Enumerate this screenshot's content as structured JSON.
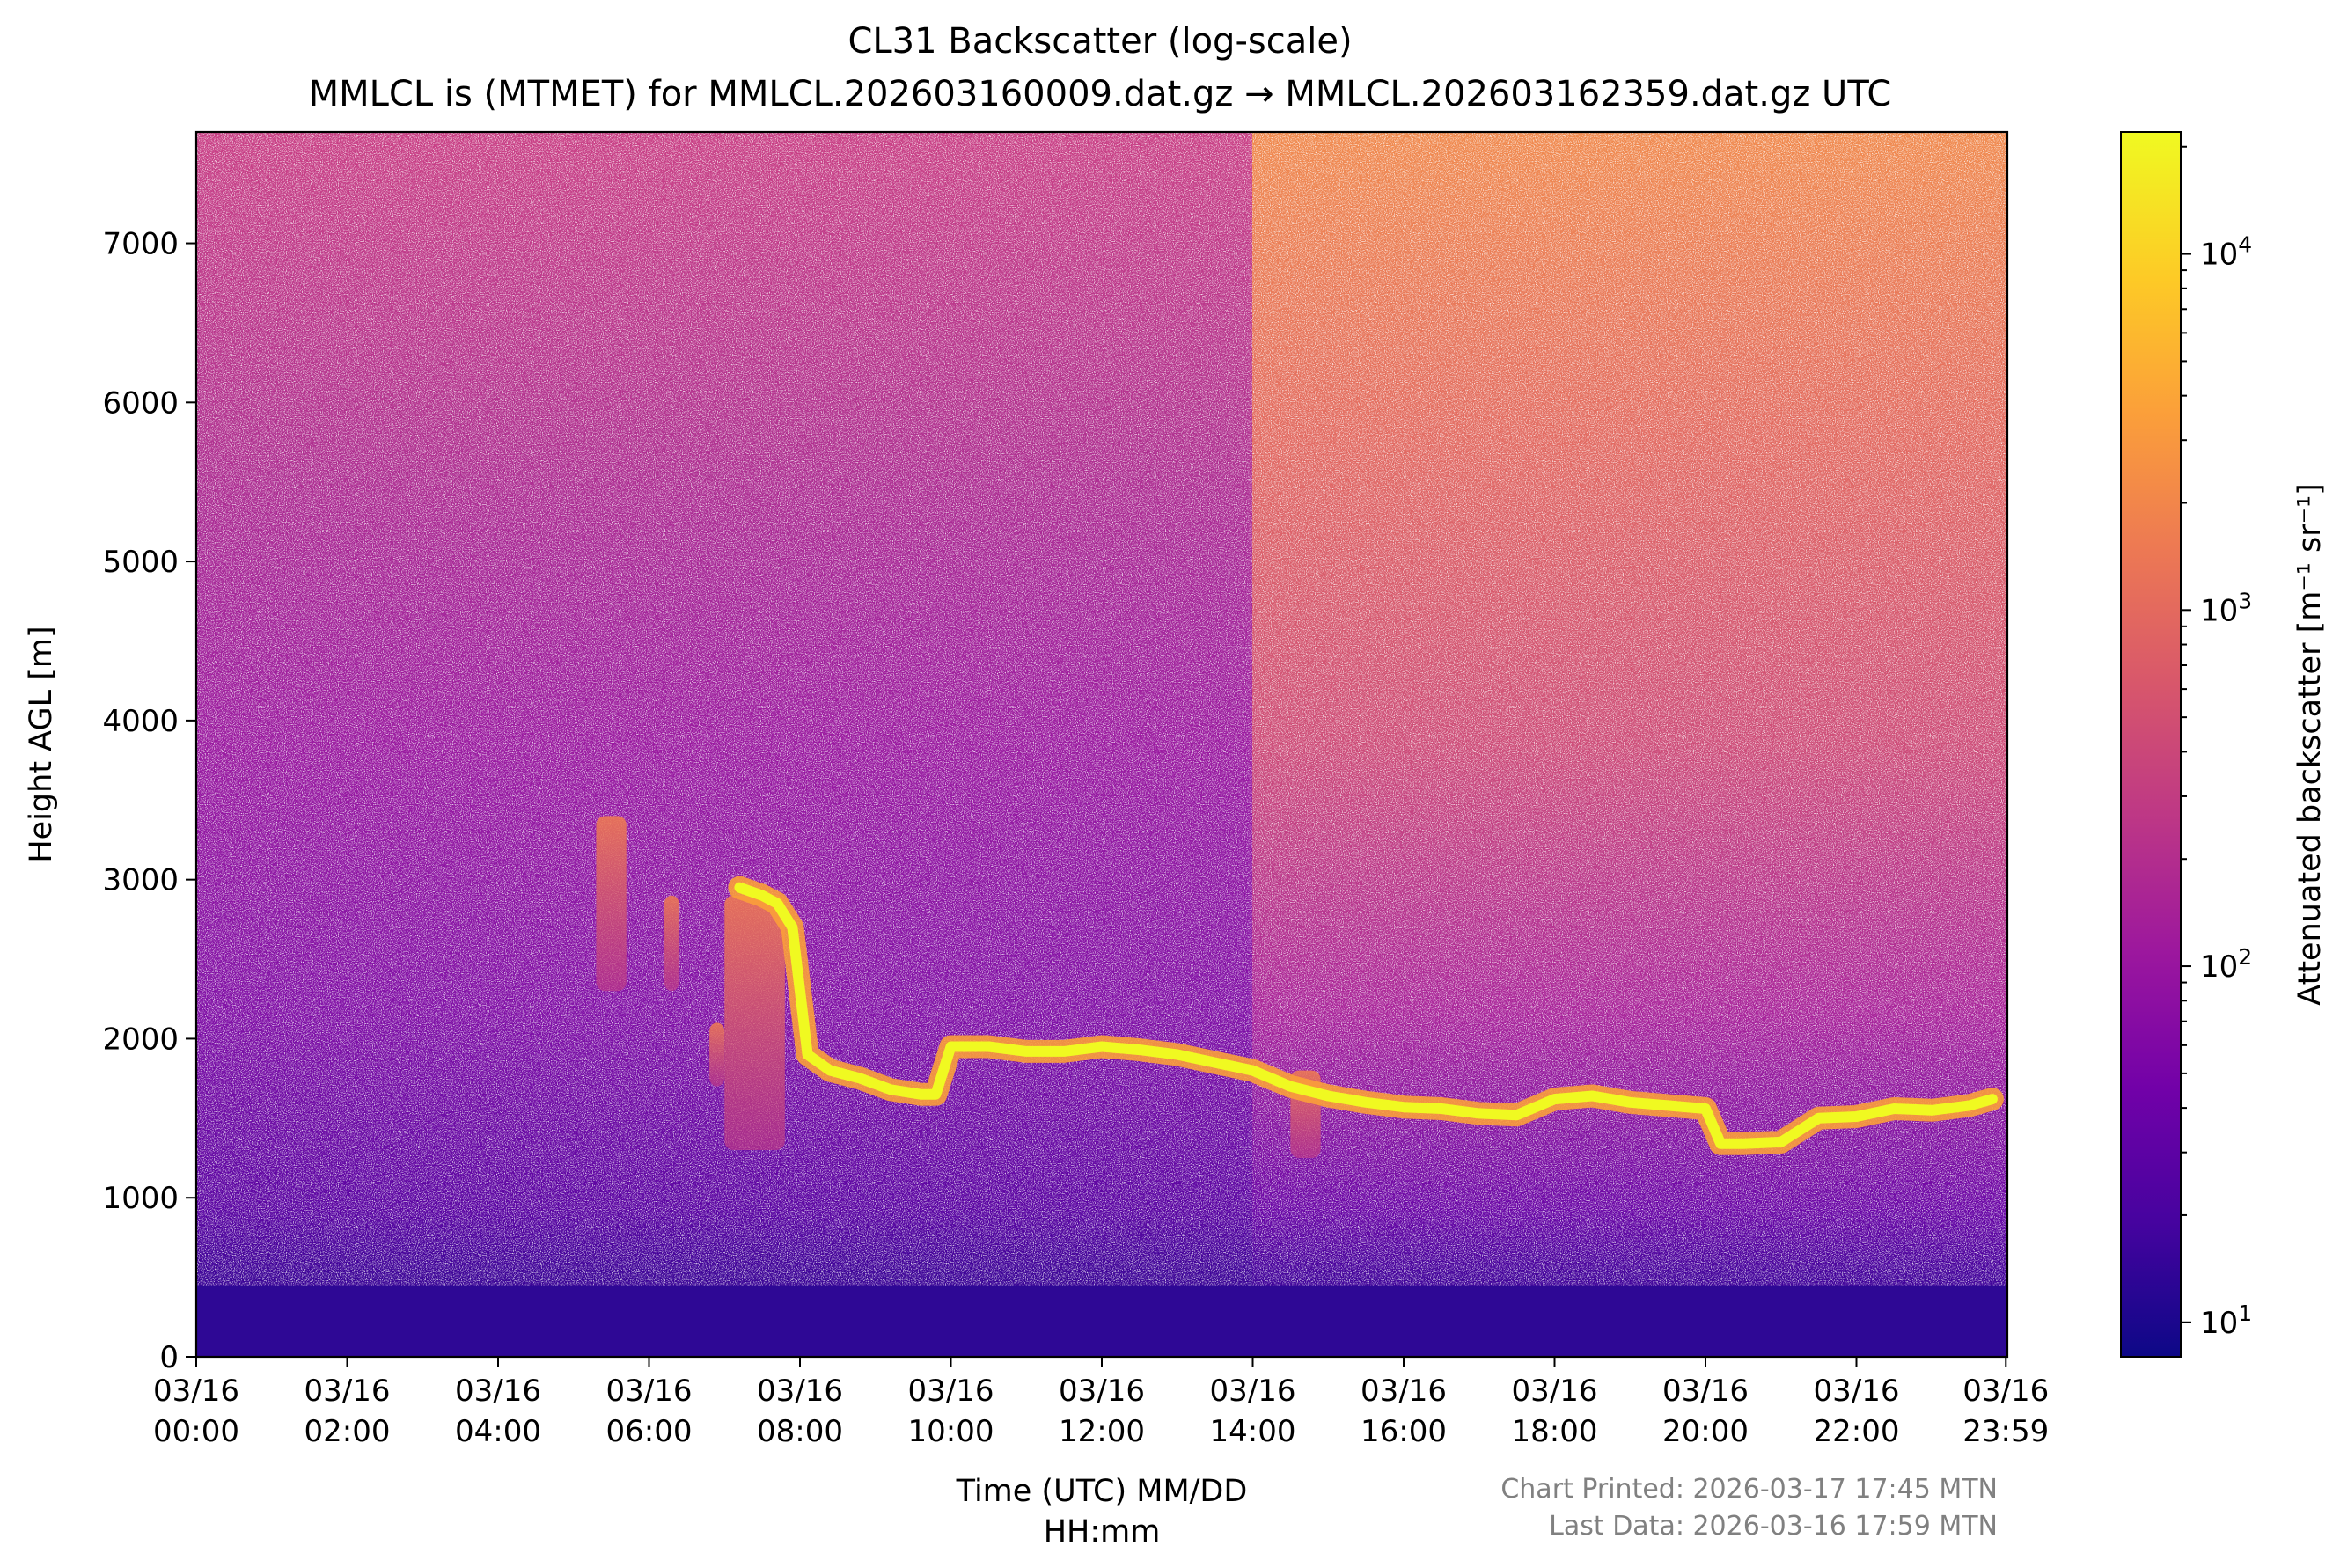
{
  "chart_data": {
    "type": "heatmap",
    "title": "CL31 Backscatter (log-scale)",
    "subtitle": "MMLCL is (MTMET) for MMLCL.202603160009.dat.gz → MMLCL.202603162359.dat.gz UTC",
    "xlabel_line1": "Time (UTC) MM/DD",
    "xlabel_line2": "HH:mm",
    "ylabel": "Height AGL [m]",
    "xlim": [
      0,
      24
    ],
    "ylim": [
      0,
      7700
    ],
    "x_ticks": [
      {
        "value": 0,
        "line1": "03/16",
        "line2": "00:00"
      },
      {
        "value": 2,
        "line1": "03/16",
        "line2": "02:00"
      },
      {
        "value": 4,
        "line1": "03/16",
        "line2": "04:00"
      },
      {
        "value": 6,
        "line1": "03/16",
        "line2": "06:00"
      },
      {
        "value": 8,
        "line1": "03/16",
        "line2": "08:00"
      },
      {
        "value": 10,
        "line1": "03/16",
        "line2": "10:00"
      },
      {
        "value": 12,
        "line1": "03/16",
        "line2": "12:00"
      },
      {
        "value": 14,
        "line1": "03/16",
        "line2": "14:00"
      },
      {
        "value": 16,
        "line1": "03/16",
        "line2": "16:00"
      },
      {
        "value": 18,
        "line1": "03/16",
        "line2": "18:00"
      },
      {
        "value": 20,
        "line1": "03/16",
        "line2": "20:00"
      },
      {
        "value": 22,
        "line1": "03/16",
        "line2": "22:00"
      },
      {
        "value": 23.98,
        "line1": "03/16",
        "line2": "23:59"
      }
    ],
    "y_ticks": [
      {
        "value": 0,
        "label": "0"
      },
      {
        "value": 1000,
        "label": "1000"
      },
      {
        "value": 2000,
        "label": "2000"
      },
      {
        "value": 3000,
        "label": "3000"
      },
      {
        "value": 4000,
        "label": "4000"
      },
      {
        "value": 5000,
        "label": "5000"
      },
      {
        "value": 6000,
        "label": "6000"
      },
      {
        "value": 7000,
        "label": "7000"
      }
    ],
    "colorbar": {
      "label": "Attenuated backscatter [m⁻¹ sr⁻¹]",
      "scale": "log",
      "range": [
        8,
        22000
      ],
      "colormap": "plasma",
      "colors": [
        "#0d0887",
        "#46039f",
        "#7201a8",
        "#9c179e",
        "#bd3786",
        "#d8576b",
        "#ed7953",
        "#fb9f3a",
        "#fdca26",
        "#f0f921"
      ],
      "ticks": [
        {
          "value": 10,
          "base": "10",
          "exp": "1"
        },
        {
          "value": 100,
          "base": "10",
          "exp": "2"
        },
        {
          "value": 1000,
          "base": "10",
          "exp": "3"
        },
        {
          "value": 10000,
          "base": "10",
          "exp": "4"
        }
      ]
    },
    "cloud_base_layer": {
      "description_units": "hours UTC, meters AGL",
      "x": [
        7.2,
        7.5,
        7.7,
        7.9,
        8.1,
        8.4,
        8.8,
        9.2,
        9.6,
        9.8,
        10.0,
        10.5,
        11.0,
        11.5,
        12.0,
        12.5,
        13.0,
        13.5,
        14.0,
        14.5,
        15.0,
        15.5,
        16.0,
        16.5,
        17.0,
        17.5,
        18.0,
        18.5,
        19.0,
        19.5,
        20.0,
        20.2,
        20.5,
        21.0,
        21.5,
        22.0,
        22.5,
        23.0,
        23.5,
        23.8
      ],
      "y": [
        2950,
        2900,
        2850,
        2700,
        1900,
        1800,
        1750,
        1680,
        1650,
        1650,
        1950,
        1950,
        1920,
        1920,
        1950,
        1930,
        1900,
        1850,
        1800,
        1700,
        1640,
        1600,
        1570,
        1560,
        1530,
        1520,
        1620,
        1640,
        1600,
        1580,
        1560,
        1340,
        1340,
        1350,
        1500,
        1510,
        1560,
        1550,
        1580,
        1620
      ]
    },
    "precipitation_streaks": [
      {
        "x_start": 5.3,
        "x_end": 5.7,
        "y_top": 3400,
        "y_bottom": 2300
      },
      {
        "x_start": 6.2,
        "x_end": 6.4,
        "y_top": 2900,
        "y_bottom": 2300
      },
      {
        "x_start": 6.8,
        "x_end": 7.0,
        "y_top": 2100,
        "y_bottom": 1700
      },
      {
        "x_start": 7.0,
        "x_end": 7.8,
        "y_top": 2900,
        "y_bottom": 1300
      },
      {
        "x_start": 14.5,
        "x_end": 14.9,
        "y_top": 1800,
        "y_bottom": 1250
      }
    ],
    "boundary_layer_top_m": [
      450,
      600
    ]
  },
  "footer": {
    "printed": "Chart Printed: 2026-03-17 17:45 MTN",
    "last_data": "Last Data: 2026-03-16 17:59 MTN"
  }
}
